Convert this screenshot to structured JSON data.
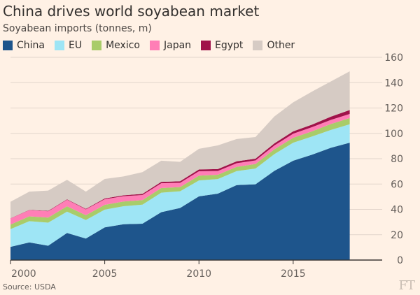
{
  "header": {
    "title": "China drives world soyabean market",
    "subtitle": "Soyabean imports (tonnes, m)"
  },
  "footer": {
    "source": "Source: USDA",
    "logo": "FT"
  },
  "chart_data": {
    "type": "area",
    "stacked": true,
    "x": [
      2000,
      2001,
      2002,
      2003,
      2004,
      2005,
      2006,
      2007,
      2008,
      2009,
      2010,
      2011,
      2012,
      2013,
      2014,
      2015,
      2016,
      2017,
      2018
    ],
    "series": [
      {
        "name": "China",
        "color": "#1e558c",
        "values": [
          10.4,
          13.9,
          11.3,
          21.4,
          17.0,
          25.8,
          28.3,
          28.7,
          37.8,
          41.1,
          50.3,
          52.4,
          59.2,
          59.8,
          70.4,
          78.4,
          83.2,
          88.6,
          92.6
        ]
      },
      {
        "name": "EU",
        "color": "#9ee5f5",
        "values": [
          14.0,
          16.8,
          18.2,
          16.8,
          14.6,
          14.0,
          14.2,
          15.0,
          15.4,
          13.2,
          12.5,
          11.5,
          11.0,
          12.4,
          13.2,
          14.2,
          14.3,
          14.1,
          14.6
        ]
      },
      {
        "name": "Mexico",
        "color": "#a9cc6a",
        "values": [
          3.6,
          3.8,
          4.0,
          4.2,
          3.8,
          3.8,
          3.7,
          3.6,
          3.6,
          3.3,
          3.8,
          3.4,
          3.3,
          3.6,
          3.8,
          3.9,
          4.1,
          4.7,
          4.9
        ]
      },
      {
        "name": "Japan",
        "color": "#ff7eb6",
        "values": [
          4.8,
          4.9,
          5.0,
          5.2,
          4.6,
          4.4,
          4.2,
          4.0,
          3.8,
          3.4,
          3.5,
          3.0,
          2.9,
          2.8,
          3.0,
          3.2,
          3.3,
          3.2,
          3.2
        ]
      },
      {
        "name": "Egypt",
        "color": "#a0124a",
        "values": [
          0.2,
          0.2,
          0.3,
          0.3,
          0.4,
          0.6,
          0.7,
          0.9,
          1.1,
          1.2,
          1.4,
          1.5,
          1.5,
          1.4,
          1.7,
          1.9,
          2.0,
          2.6,
          3.1
        ]
      },
      {
        "name": "Other",
        "color": "#d6cbc4",
        "values": [
          13.0,
          14.4,
          16.0,
          15.4,
          13.6,
          15.4,
          14.9,
          17.2,
          16.7,
          15.3,
          16.3,
          18.7,
          17.6,
          17.1,
          21.2,
          22.9,
          26.1,
          27.8,
          30.6
        ]
      }
    ],
    "ylim": [
      0,
      160
    ],
    "yticks": [
      0,
      20,
      40,
      60,
      80,
      100,
      120,
      140,
      160
    ],
    "xticks": [
      2000,
      2005,
      2010,
      2015
    ],
    "xlim": [
      2000,
      2019.5
    ],
    "grid": true,
    "legend": "top-left",
    "yaxis_position": "right"
  }
}
